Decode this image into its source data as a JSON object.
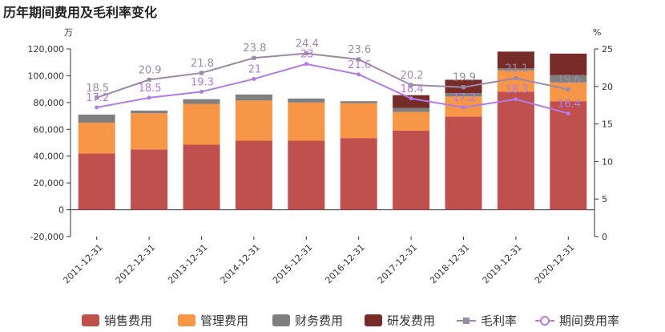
{
  "chart_data": {
    "type": "bar",
    "title": "历年期间费用及毛利率变化",
    "y_left_unit": "万",
    "y_right_unit": "%",
    "categories": [
      "2011-12-31",
      "2012-12-31",
      "2013-12-31",
      "2014-12-31",
      "2015-12-31",
      "2016-12-31",
      "2017-12-31",
      "2018-12-31",
      "2019-12-31",
      "2020-12-31"
    ],
    "y_left": {
      "min": -20000,
      "max": 120000,
      "ticks": [
        -20000,
        0,
        20000,
        40000,
        60000,
        80000,
        100000,
        120000
      ],
      "tick_labels": [
        "-20,000",
        "0",
        "20,000",
        "40,000",
        "60,000",
        "80,000",
        "100,000",
        "120,000"
      ]
    },
    "y_right": {
      "min": 0,
      "max": 25,
      "ticks": [
        0,
        5,
        10,
        15,
        20,
        25
      ],
      "tick_labels": [
        "0",
        "5",
        "10",
        "15",
        "20",
        "25"
      ]
    },
    "series": [
      {
        "name": "销售费用",
        "kind": "bar",
        "color": "#c0504d",
        "values": [
          42000,
          45000,
          48500,
          51500,
          51500,
          53500,
          59000,
          69500,
          88000,
          81000
        ]
      },
      {
        "name": "管理费用",
        "kind": "bar",
        "color": "#f79646",
        "values": [
          23000,
          27000,
          30500,
          30000,
          28500,
          26000,
          14000,
          15000,
          16000,
          14000
        ]
      },
      {
        "name": "财务费用",
        "kind": "bar",
        "color": "#7f7f7f",
        "values": [
          6000,
          2000,
          3500,
          4500,
          3000,
          1500,
          3000,
          2500,
          1500,
          5500
        ]
      },
      {
        "name": "研发费用",
        "kind": "bar",
        "color": "#772c2a",
        "values": [
          0,
          0,
          0,
          0,
          0,
          0,
          9500,
          10000,
          12500,
          16000
        ]
      },
      {
        "name": "毛利率",
        "kind": "line",
        "axis": "right",
        "color": "#9a8aa6",
        "values": [
          18.5,
          20.9,
          21.8,
          23.8,
          24.4,
          23.6,
          20.2,
          19.9,
          21.1,
          19.6
        ],
        "labels": [
          "18.5",
          "20.9",
          "21.8",
          "23.8",
          "24.4",
          "23.6",
          "20.2",
          "19.9",
          "21.1",
          "19.6"
        ]
      },
      {
        "name": "期间费用率",
        "kind": "line",
        "axis": "right",
        "color": "#b27be6",
        "values": [
          17.2,
          18.5,
          19.3,
          21.0,
          23.0,
          21.6,
          18.4,
          17.2,
          18.3,
          16.4
        ],
        "labels": [
          "17.2",
          "18.5",
          "19.3",
          "21",
          "23",
          "21.6",
          "18.4",
          "17.2",
          "18.3",
          "16.4"
        ]
      }
    ],
    "legend": {
      "position": "bottom"
    },
    "grid": false
  }
}
